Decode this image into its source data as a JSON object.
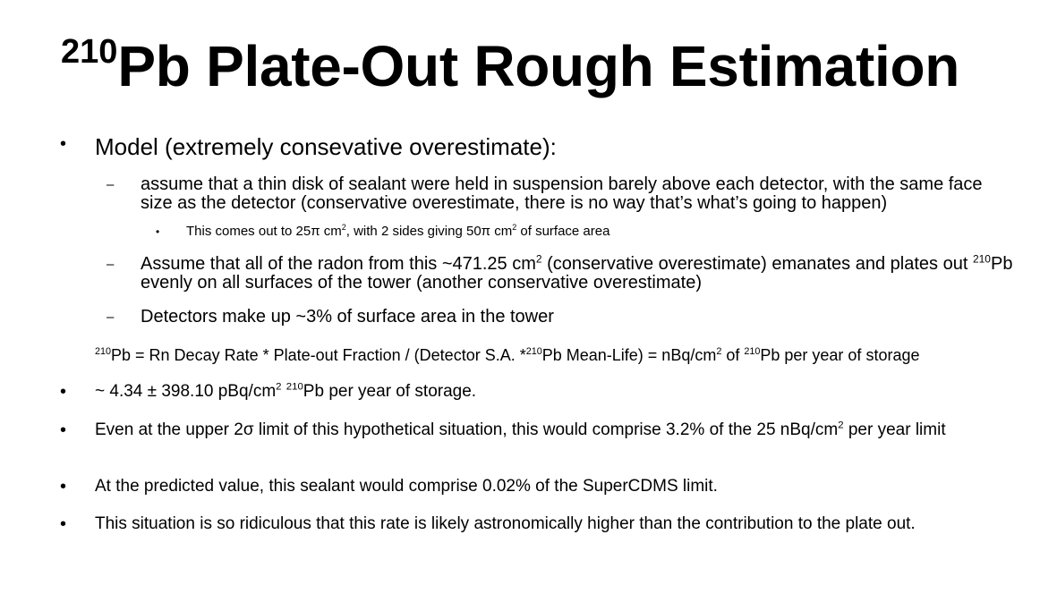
{
  "title": {
    "sup": "210",
    "text": "Pb Plate-Out Rough Estimation"
  },
  "bullets": {
    "level1": "•",
    "level2": "–",
    "level3": "•"
  },
  "model": {
    "text": "Model (extremely consevative overestimate):"
  },
  "sub1": {
    "text": "assume that a thin disk of sealant were held in suspension barely above each detector, with the same face size as the detector (conservative overestimate, there is no way that’s what’s going to happen)"
  },
  "sub1a": {
    "part1": "This comes out to 25π cm",
    "sup1": "2",
    "part2": ", with 2 sides giving 50π cm",
    "sup2": "2",
    "part3": " of surface area"
  },
  "sub2": {
    "part1": "Assume that all of the radon from this ~471.25 cm",
    "sup1": "2",
    "part2": " (conservative overestimate) emanates and plates out ",
    "sup2": "210",
    "part3": "Pb evenly on all surfaces of the tower (another conservative overestimate)"
  },
  "sub3": {
    "text": "Detectors make up ~3% of surface area in the tower"
  },
  "formula": {
    "sup1": "210",
    "part1": "Pb = Rn Decay Rate * Plate-out Fraction / (Detector S.A. *",
    "sup2": "210",
    "part2": "Pb Mean-Life) = nBq/cm",
    "sup3": "2",
    "part3": " of ",
    "sup4": "210",
    "part4": "Pb per year of storage"
  },
  "result": {
    "part1": "~ 4.34 ± 398.10 pBq/cm",
    "sup1": "2",
    "part2": " ",
    "sup2": "210",
    "part3": "Pb per year of storage."
  },
  "upper": {
    "part1": "Even at the upper 2σ limit of this hypothetical situation, this would comprise 3.2% of the 25 nBq/cm",
    "sup1": "2",
    "part2": " per year limit"
  },
  "predicted": {
    "text": "At the predicted value, this sealant would comprise 0.02% of the SuperCDMS limit."
  },
  "ridiculous": {
    "text": "This situation is so ridiculous that this rate is likely astronomically higher than the contribution to the plate out."
  }
}
